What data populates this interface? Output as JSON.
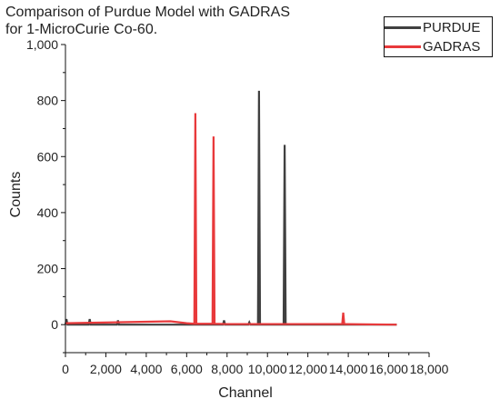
{
  "chart_data": {
    "type": "line",
    "title": "Comparison of Purdue Model with GADRAS\nfor 1-MicroCurie Co-60.",
    "xlabel": "Channel",
    "ylabel": "Counts",
    "xlim": [
      0,
      18000
    ],
    "ylim": [
      -100,
      1000
    ],
    "x_ticks": [
      "0",
      "2,000",
      "4,000",
      "6,000",
      "8,000",
      "10,000",
      "12,000",
      "14,000",
      "16,000",
      "18,000"
    ],
    "y_ticks": [
      "0",
      "200",
      "400",
      "600",
      "800",
      "1,000"
    ],
    "legend_position": "top-right",
    "grid": false,
    "series": [
      {
        "name": "PURDUE",
        "color": "#404040",
        "x": [
          0,
          50,
          100,
          1150,
          1200,
          1250,
          2550,
          2600,
          2650,
          5200,
          7800,
          7850,
          7900,
          9050,
          9100,
          9150,
          9530,
          9580,
          9630,
          10800,
          10850,
          10900,
          16400
        ],
        "y": [
          0,
          20,
          0,
          0,
          20,
          0,
          0,
          15,
          0,
          0,
          0,
          15,
          0,
          0,
          8,
          0,
          0,
          835,
          0,
          0,
          642,
          0,
          0
        ]
      },
      {
        "name": "GADRAS",
        "color": "#e8393b",
        "x": [
          0,
          5200,
          6000,
          6380,
          6430,
          6480,
          7280,
          7330,
          7380,
          8000,
          13700,
          13750,
          13800,
          16400
        ],
        "y": [
          5,
          12,
          5,
          3,
          755,
          3,
          3,
          672,
          3,
          2,
          2,
          43,
          2,
          0
        ]
      }
    ]
  }
}
